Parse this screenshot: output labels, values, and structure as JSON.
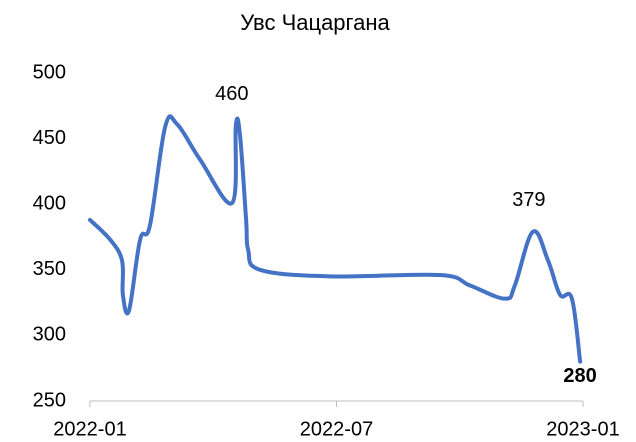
{
  "chart_data": {
    "type": "line",
    "title": "Увс Чацаргана",
    "x": [
      0,
      0.49,
      0.78,
      0.8,
      0.95,
      1.22,
      1.46,
      1.83,
      2.12,
      2.68,
      3.46,
      3.55,
      3.65,
      3.8,
      3.85,
      4.14,
      5.84,
      8.52,
      9.25,
      10.1,
      10.34,
      10.78,
      11.15,
      11.44,
      11.73,
      11.93
    ],
    "series": [
      {
        "name": "Увс Чацаргана",
        "color": "#4472c4",
        "values": [
          388,
          373,
          357,
          331,
          319,
          373,
          384,
          459,
          461,
          434,
          401,
          460,
          453,
          388,
          365,
          350,
          345,
          346,
          338,
          328,
          338,
          379,
          357,
          331,
          328,
          280
        ],
        "value_labels": [
          null,
          null,
          null,
          null,
          null,
          null,
          null,
          null,
          null,
          null,
          null,
          "460",
          null,
          null,
          null,
          null,
          null,
          null,
          null,
          null,
          null,
          "379",
          null,
          null,
          null,
          "280"
        ]
      }
    ],
    "xlim": [
      0,
      12
    ],
    "xticks": [
      {
        "value": 0,
        "label": "2022-01"
      },
      {
        "value": 6,
        "label": "2022-07"
      },
      {
        "value": 12,
        "label": "2023-01"
      }
    ],
    "ylim": [
      250,
      500
    ],
    "yticks": [
      250,
      300,
      350,
      400,
      450,
      500
    ],
    "grid": false
  }
}
